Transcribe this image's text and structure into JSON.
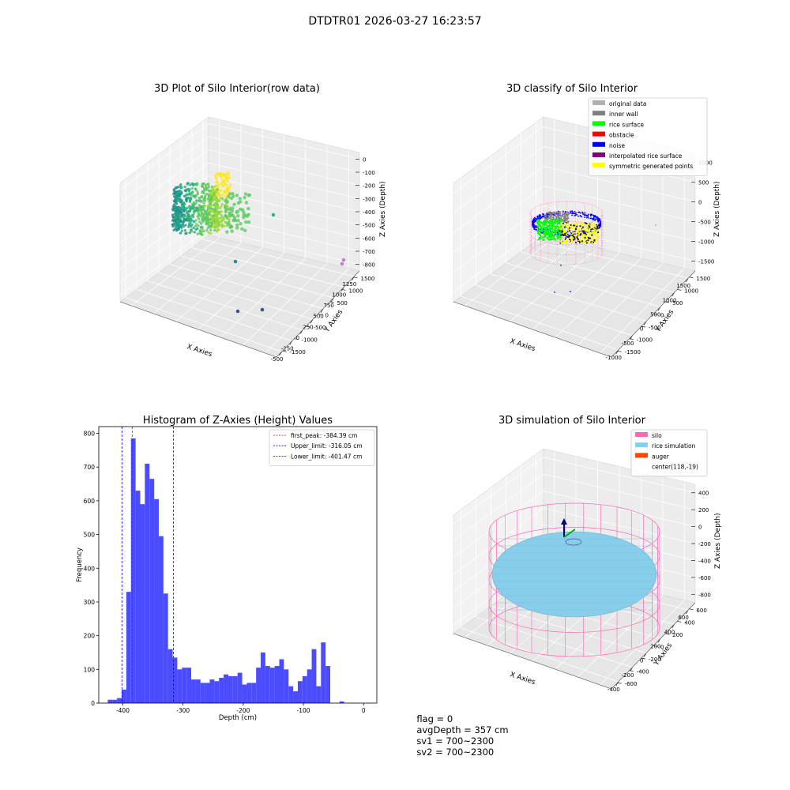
{
  "suptitle": "DTDTR01 2026-03-27 16:23:57",
  "footer": {
    "flag": "flag = 0",
    "avg_depth": "avgDepth = 357 cm",
    "sv1": "sv1 = 700~2300",
    "sv2": "sv2 = 700~2300"
  },
  "chart_data": [
    {
      "type": "scatter",
      "projection": "3d",
      "title": "3D Plot of Silo Interior(row data)",
      "xlabel": "X Axies",
      "ylabel": "Y Axies",
      "zlabel": "Z Axies (Depth)",
      "x_ticks": [
        "-500",
        "-250",
        "0",
        "250",
        "500",
        "750",
        "1000",
        "1250"
      ],
      "y_ticks": [
        "1500",
        "1000",
        "500",
        "0",
        "-500",
        "-1000",
        "-1500"
      ],
      "z_ticks": [
        "0",
        "-100",
        "-200",
        "-300",
        "-400",
        "-500",
        "-600",
        "-700",
        "-800"
      ],
      "colormap": "viridis",
      "note_points": [
        {
          "x": 1000,
          "y": -1300,
          "z": -800
        },
        {
          "x": 1100,
          "y": -1200,
          "z": -790
        },
        {
          "x": 1250,
          "y": 1300,
          "z": -780
        }
      ]
    },
    {
      "type": "scatter",
      "projection": "3d",
      "title": "3D classify of Silo Interior",
      "xlabel": "X Axies",
      "ylabel": "Y Axies",
      "zlabel": "Z Axies (Depth)",
      "x_ticks": [
        "-1000",
        "-500",
        "0",
        "500",
        "1000",
        "1500"
      ],
      "y_ticks": [
        "1500",
        "1000",
        "500",
        "0",
        "-500",
        "-1000",
        "-1500"
      ],
      "z_ticks": [
        "1000",
        "500",
        "0",
        "-500",
        "-1000",
        "-1500"
      ],
      "legend_position": "top-right",
      "legend": [
        {
          "label": "original data",
          "color": "#b0b0b0"
        },
        {
          "label": "inner wall",
          "color": "#808080"
        },
        {
          "label": "rice surface",
          "color": "#00ff00"
        },
        {
          "label": "obstacle",
          "color": "#ff0000"
        },
        {
          "label": "noise",
          "color": "#0000ff"
        },
        {
          "label": "interpolated rice surface",
          "color": "#800080"
        },
        {
          "label": "symmetric generated points",
          "color": "#ffff00"
        }
      ]
    },
    {
      "type": "bar",
      "title": "Histogram of Z-Axies (Height) Values",
      "xlabel": "Depth (cm)",
      "ylabel": "Frequency",
      "xlim": [
        -440,
        22
      ],
      "ylim": [
        0,
        820
      ],
      "x_ticks": [
        -400,
        -300,
        -200,
        -100,
        0
      ],
      "y_ticks": [
        0,
        100,
        200,
        300,
        400,
        500,
        600,
        700,
        800
      ],
      "bar_color": "#4b4bff",
      "bin_width": 7.7,
      "bin_start": -425,
      "values": [
        10,
        10,
        15,
        40,
        330,
        785,
        630,
        590,
        710,
        665,
        605,
        495,
        325,
        160,
        135,
        100,
        105,
        105,
        70,
        70,
        60,
        60,
        70,
        65,
        75,
        85,
        80,
        80,
        90,
        55,
        60,
        60,
        105,
        150,
        110,
        105,
        110,
        130,
        100,
        50,
        35,
        65,
        80,
        100,
        160,
        50,
        180,
        110,
        0,
        0,
        5
      ],
      "lines": [
        {
          "label": "first_peak: -384.39 cm",
          "x": -384.39,
          "color": "#ff0000"
        },
        {
          "label": "Upper_limit: -316.05 cm",
          "x": -316.05,
          "color": "#0000ff"
        },
        {
          "label": "Lower_limit: -401.47 cm",
          "x": -401.47,
          "color": "#0000ff"
        }
      ],
      "legend_position": "top-right"
    },
    {
      "type": "scatter",
      "projection": "3d",
      "title": "3D simulation of Silo Interior",
      "xlabel": "X Axies",
      "ylabel": "Y Axies",
      "zlabel": "Z Axies (Depth)",
      "x_ticks": [
        "-400",
        "-200",
        "0",
        "200",
        "400",
        "600"
      ],
      "y_ticks": [
        "600",
        "400",
        "200",
        "0",
        "-200",
        "-400",
        "-600"
      ],
      "z_ticks": [
        "400",
        "200",
        "0",
        "-200",
        "-400",
        "-600",
        "-800"
      ],
      "legend_position": "top-right",
      "legend": [
        {
          "label": "silo",
          "color": "#ff69b4"
        },
        {
          "label": "rice simulation",
          "color": "#87ceeb"
        },
        {
          "label": "auger",
          "color": "#ff4500"
        },
        {
          "label": "center(118,-19)",
          "color": ""
        }
      ]
    }
  ]
}
